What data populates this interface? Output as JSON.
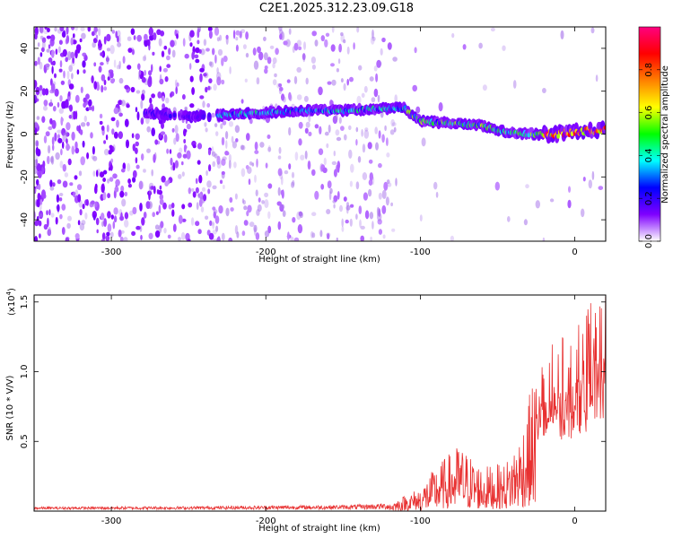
{
  "title": "C2E1.2025.312.23.09.G18",
  "chart_data": [
    {
      "type": "heatmap",
      "name": "spectrogram",
      "xlabel": "Height of straight line (km)",
      "ylabel": "Frequency (Hz)",
      "xlim": [
        -350,
        20
      ],
      "ylim": [
        -50,
        50
      ],
      "xticks": [
        -300,
        -200,
        -100,
        0
      ],
      "yticks": [
        -40,
        -20,
        0,
        20,
        40
      ],
      "signal_track": [
        {
          "x": -275,
          "y": 10
        },
        {
          "x": -250,
          "y": 8
        },
        {
          "x": -225,
          "y": 9
        },
        {
          "x": -200,
          "y": 10
        },
        {
          "x": -175,
          "y": 11
        },
        {
          "x": -150,
          "y": 11
        },
        {
          "x": -125,
          "y": 12
        },
        {
          "x": -110,
          "y": 12
        },
        {
          "x": -100,
          "y": 6
        },
        {
          "x": -80,
          "y": 5
        },
        {
          "x": -60,
          "y": 4
        },
        {
          "x": -45,
          "y": 1
        },
        {
          "x": -30,
          "y": 0
        },
        {
          "x": -15,
          "y": 0
        },
        {
          "x": 0,
          "y": 1
        },
        {
          "x": 20,
          "y": 2
        }
      ],
      "colorbar": {
        "label": "Normalized spectral amplitude",
        "range": [
          0,
          1
        ],
        "ticks": [
          "0.0",
          "0.2",
          "0.4",
          "0.6",
          "0.8"
        ],
        "colors": [
          "#ffffff",
          "#7f00ff",
          "#0000ff",
          "#00ffff",
          "#00ff00",
          "#ffff00",
          "#ff8000",
          "#ff0000",
          "#ff0080"
        ]
      }
    },
    {
      "type": "line",
      "name": "snr",
      "xlabel": "Height of straight line (km)",
      "ylabel": "SNR (10 * V/V)",
      "yscale_label": "(x10",
      "yscale_exp": "4",
      "yscale_close": ")",
      "xlim": [
        -350,
        20
      ],
      "ylim": [
        0,
        1.55
      ],
      "xticks": [
        -300,
        -200,
        -100,
        0
      ],
      "yticks": [
        0.5,
        1.0,
        1.5
      ],
      "ytick_labels": [
        "0.5",
        "1.0",
        "1.5"
      ],
      "color": "#e83030",
      "envelope": [
        {
          "x": -350,
          "y": 0.02
        },
        {
          "x": -250,
          "y": 0.025
        },
        {
          "x": -150,
          "y": 0.035
        },
        {
          "x": -120,
          "y": 0.05
        },
        {
          "x": -100,
          "y": 0.15
        },
        {
          "x": -90,
          "y": 0.28
        },
        {
          "x": -75,
          "y": 0.42
        },
        {
          "x": -60,
          "y": 0.28
        },
        {
          "x": -45,
          "y": 0.3
        },
        {
          "x": -35,
          "y": 0.5
        },
        {
          "x": -25,
          "y": 0.9
        },
        {
          "x": -15,
          "y": 1.05
        },
        {
          "x": 0,
          "y": 1.15
        },
        {
          "x": 20,
          "y": 1.45
        }
      ]
    }
  ]
}
